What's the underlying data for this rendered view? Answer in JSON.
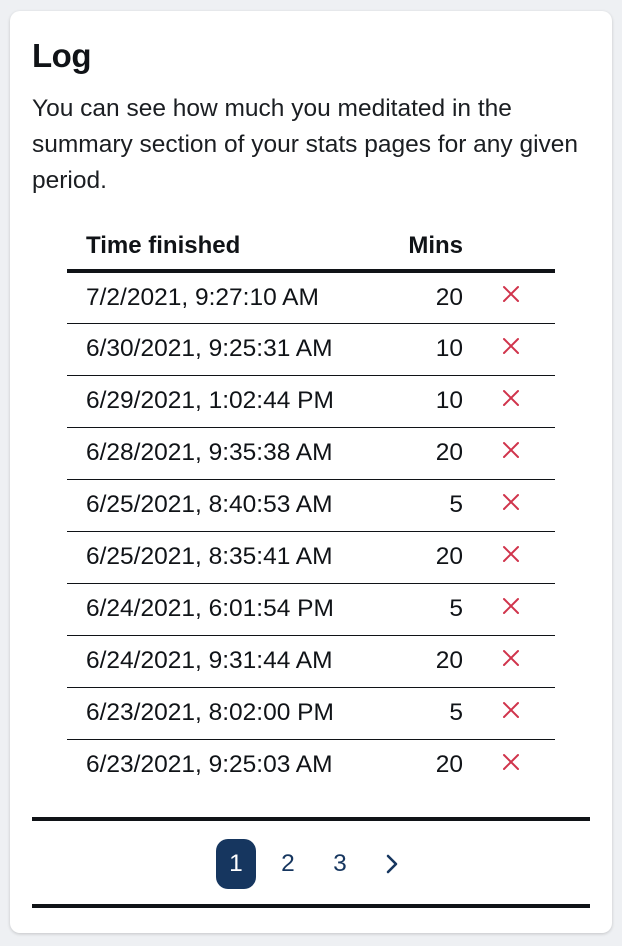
{
  "card": {
    "title": "Log",
    "description": "You can see how much you meditated in the summary section of your stats pages for any given period."
  },
  "table": {
    "headers": {
      "time": "Time finished",
      "mins": "Mins"
    },
    "rows": [
      {
        "time": "7/2/2021, 9:27:10 AM",
        "mins": "20"
      },
      {
        "time": "6/30/2021, 9:25:31 AM",
        "mins": "10"
      },
      {
        "time": "6/29/2021, 1:02:44 PM",
        "mins": "10"
      },
      {
        "time": "6/28/2021, 9:35:38 AM",
        "mins": "20"
      },
      {
        "time": "6/25/2021, 8:40:53 AM",
        "mins": "5"
      },
      {
        "time": "6/25/2021, 8:35:41 AM",
        "mins": "20"
      },
      {
        "time": "6/24/2021, 6:01:54 PM",
        "mins": "5"
      },
      {
        "time": "6/24/2021, 9:31:44 AM",
        "mins": "20"
      },
      {
        "time": "6/23/2021, 8:02:00 PM",
        "mins": "5"
      },
      {
        "time": "6/23/2021, 9:25:03 AM",
        "mins": "20"
      }
    ],
    "delete_icon": "close-x-icon"
  },
  "pagination": {
    "pages": [
      "1",
      "2",
      "3"
    ],
    "current": "1",
    "next_icon": "chevron-right-icon"
  },
  "colors": {
    "accent": "#16365f",
    "delete": "#d0344c",
    "text": "#101317",
    "background": "#eef0f3"
  }
}
